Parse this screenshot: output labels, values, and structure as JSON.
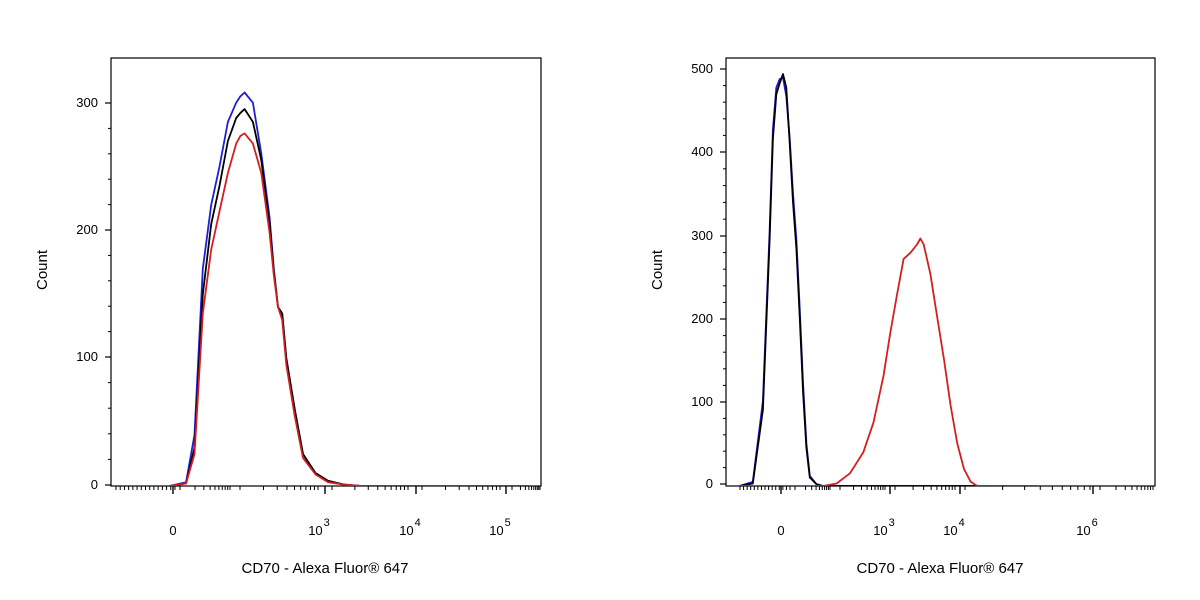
{
  "chart_data": [
    {
      "type": "line",
      "panel": "left",
      "xlabel": "CD70 - Alexa Fluor® 647",
      "ylabel": "Count",
      "x_scale": "biexponential",
      "y_ticks": [
        {
          "value": 0,
          "label": "0"
        },
        {
          "value": 100,
          "label": "100"
        },
        {
          "value": 200,
          "label": "200"
        },
        {
          "value": 300,
          "label": "300"
        }
      ],
      "x_ticks": [
        {
          "label": "0",
          "base": "",
          "exp": ""
        },
        {
          "label": "",
          "base": "10",
          "exp": "3"
        },
        {
          "label": "",
          "base": "10",
          "exp": "4"
        },
        {
          "label": "",
          "base": "10",
          "exp": "5"
        }
      ],
      "ylim": [
        0,
        335
      ],
      "grid": false,
      "series": [
        {
          "color": "#1f1fd2",
          "points": [
            [
              -0.3,
              0
            ],
            [
              -0.1,
              3
            ],
            [
              0.0,
              40
            ],
            [
              0.1,
              170
            ],
            [
              0.2,
              220
            ],
            [
              0.3,
              250
            ],
            [
              0.4,
              285
            ],
            [
              0.5,
              300
            ],
            [
              0.55,
              305
            ],
            [
              0.6,
              308
            ],
            [
              0.7,
              300
            ],
            [
              0.8,
              260
            ],
            [
              0.9,
              210
            ],
            [
              0.95,
              170
            ],
            [
              1.0,
              140
            ],
            [
              1.05,
              135
            ],
            [
              1.1,
              100
            ],
            [
              1.2,
              60
            ],
            [
              1.3,
              25
            ],
            [
              1.45,
              10
            ],
            [
              1.6,
              4
            ],
            [
              1.8,
              1
            ],
            [
              2.0,
              0
            ],
            [
              4.0,
              0
            ]
          ]
        },
        {
          "color": "#000000",
          "points": [
            [
              -0.3,
              0
            ],
            [
              -0.1,
              2
            ],
            [
              0.0,
              30
            ],
            [
              0.1,
              150
            ],
            [
              0.2,
              205
            ],
            [
              0.3,
              235
            ],
            [
              0.4,
              270
            ],
            [
              0.5,
              288
            ],
            [
              0.55,
              292
            ],
            [
              0.6,
              295
            ],
            [
              0.7,
              285
            ],
            [
              0.8,
              255
            ],
            [
              0.9,
              205
            ],
            [
              0.95,
              168
            ],
            [
              1.0,
              140
            ],
            [
              1.05,
              135
            ],
            [
              1.1,
              100
            ],
            [
              1.2,
              60
            ],
            [
              1.3,
              25
            ],
            [
              1.45,
              10
            ],
            [
              1.6,
              4
            ],
            [
              1.8,
              1
            ],
            [
              2.0,
              0
            ],
            [
              4.0,
              0
            ]
          ]
        },
        {
          "color": "#d21f1f",
          "points": [
            [
              -0.3,
              0
            ],
            [
              -0.1,
              2
            ],
            [
              0.0,
              25
            ],
            [
              0.1,
              135
            ],
            [
              0.2,
              185
            ],
            [
              0.3,
              215
            ],
            [
              0.4,
              245
            ],
            [
              0.5,
              268
            ],
            [
              0.55,
              274
            ],
            [
              0.6,
              276
            ],
            [
              0.7,
              268
            ],
            [
              0.8,
              245
            ],
            [
              0.9,
              198
            ],
            [
              0.95,
              165
            ],
            [
              1.0,
              140
            ],
            [
              1.05,
              130
            ],
            [
              1.1,
              95
            ],
            [
              1.2,
              55
            ],
            [
              1.3,
              22
            ],
            [
              1.45,
              9
            ],
            [
              1.6,
              3
            ],
            [
              1.8,
              1
            ],
            [
              2.0,
              0
            ],
            [
              4.0,
              0
            ]
          ]
        }
      ]
    },
    {
      "type": "line",
      "panel": "right",
      "xlabel": "CD70 - Alexa Fluor® 647",
      "ylabel": "Count",
      "x_scale": "biexponential",
      "y_ticks": [
        {
          "value": 0,
          "label": "0"
        },
        {
          "value": 100,
          "label": "100"
        },
        {
          "value": 200,
          "label": "200"
        },
        {
          "value": 300,
          "label": "300"
        },
        {
          "value": 400,
          "label": "400"
        },
        {
          "value": 500,
          "label": "500"
        }
      ],
      "x_ticks": [
        {
          "label": "0",
          "base": "",
          "exp": ""
        },
        {
          "label": "",
          "base": "10",
          "exp": "3"
        },
        {
          "label": "",
          "base": "10",
          "exp": "4"
        },
        {
          "label": "",
          "base": "10",
          "exp": "6"
        }
      ],
      "ylim": [
        0,
        510
      ],
      "grid": false,
      "series": [
        {
          "color": "#1f1fd2",
          "points": [
            [
              -0.45,
              0
            ],
            [
              -0.25,
              5
            ],
            [
              -0.1,
              100
            ],
            [
              0.0,
              300
            ],
            [
              0.05,
              420
            ],
            [
              0.1,
              470
            ],
            [
              0.15,
              480
            ],
            [
              0.2,
              482
            ],
            [
              0.25,
              460
            ],
            [
              0.3,
              410
            ],
            [
              0.35,
              345
            ],
            [
              0.4,
              290
            ],
            [
              0.45,
              210
            ],
            [
              0.5,
              120
            ],
            [
              0.55,
              50
            ],
            [
              0.6,
              12
            ],
            [
              0.7,
              2
            ],
            [
              0.8,
              0
            ],
            [
              4.0,
              0
            ]
          ]
        },
        {
          "color": "#000000",
          "points": [
            [
              -0.45,
              0
            ],
            [
              -0.25,
              3
            ],
            [
              -0.1,
              90
            ],
            [
              0.0,
              290
            ],
            [
              0.05,
              410
            ],
            [
              0.1,
              462
            ],
            [
              0.15,
              475
            ],
            [
              0.2,
              486
            ],
            [
              0.25,
              470
            ],
            [
              0.3,
              405
            ],
            [
              0.35,
              335
            ],
            [
              0.4,
              280
            ],
            [
              0.45,
              200
            ],
            [
              0.5,
              110
            ],
            [
              0.55,
              45
            ],
            [
              0.6,
              10
            ],
            [
              0.7,
              2
            ],
            [
              0.8,
              0
            ],
            [
              4.0,
              0
            ]
          ]
        },
        {
          "color": "#d21f1f",
          "points": [
            [
              -0.45,
              0
            ],
            [
              0.8,
              0
            ],
            [
              1.0,
              3
            ],
            [
              1.2,
              15
            ],
            [
              1.4,
              40
            ],
            [
              1.55,
              75
            ],
            [
              1.7,
              130
            ],
            [
              1.8,
              180
            ],
            [
              1.9,
              225
            ],
            [
              2.0,
              268
            ],
            [
              2.1,
              275
            ],
            [
              2.2,
              285
            ],
            [
              2.25,
              292
            ],
            [
              2.3,
              285
            ],
            [
              2.4,
              250
            ],
            [
              2.5,
              200
            ],
            [
              2.6,
              150
            ],
            [
              2.7,
              95
            ],
            [
              2.8,
              50
            ],
            [
              2.9,
              20
            ],
            [
              3.0,
              5
            ],
            [
              3.1,
              0
            ],
            [
              5.6,
              0
            ]
          ]
        }
      ]
    }
  ]
}
